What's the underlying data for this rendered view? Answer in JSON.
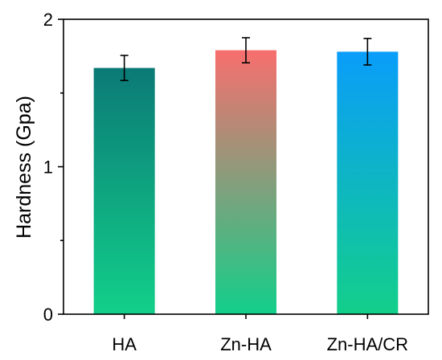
{
  "chart_data": {
    "type": "bar",
    "categories": [
      "HA",
      "Zn-HA",
      "Zn-HA/CR"
    ],
    "values": [
      1.67,
      1.79,
      1.78
    ],
    "errors": [
      0.085,
      0.085,
      0.09
    ],
    "ylabel": "Hardness (Gpa)",
    "xlabel": "",
    "ylim": [
      0,
      2
    ],
    "yticks": [
      0,
      1,
      2
    ],
    "grid": false,
    "bar_gradients": [
      {
        "top": "#0b7a76",
        "bottom": "#12cf8a"
      },
      {
        "top": "#f86e6e",
        "bottom": "#12cf8a"
      },
      {
        "top": "#0a9dfa",
        "bottom": "#12cf8a"
      }
    ],
    "error_bar_color": "#000000"
  }
}
